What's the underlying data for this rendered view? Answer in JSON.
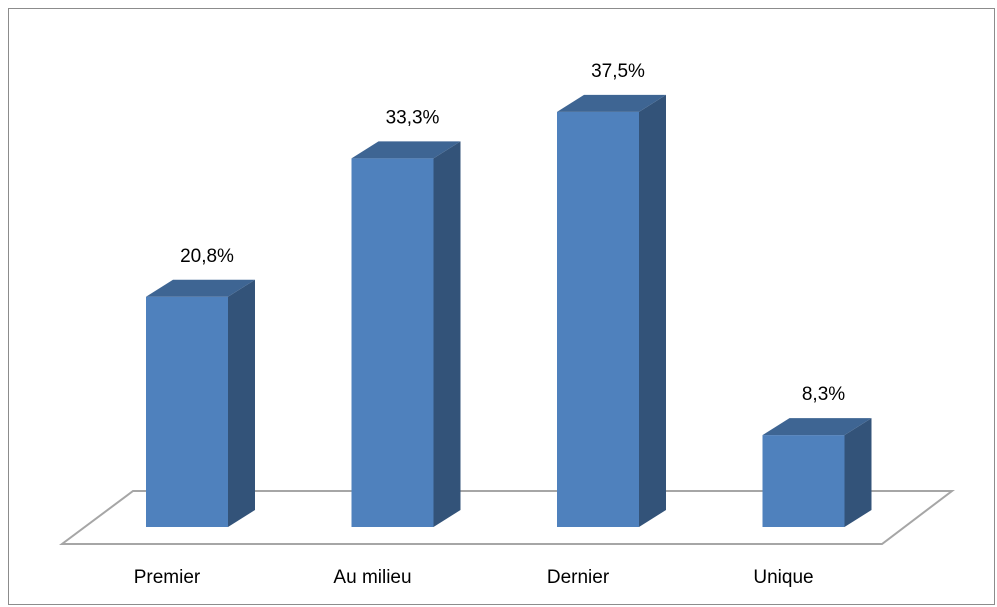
{
  "chart_data": {
    "type": "bar3d",
    "categories": [
      "Premier",
      "Au milieu",
      "Dernier",
      "Unique"
    ],
    "values": [
      20.8,
      33.3,
      37.5,
      8.3
    ],
    "value_labels": [
      "20,8%",
      "33,3%",
      "37,5%",
      "8,3%"
    ],
    "color": "#4f81bd"
  }
}
